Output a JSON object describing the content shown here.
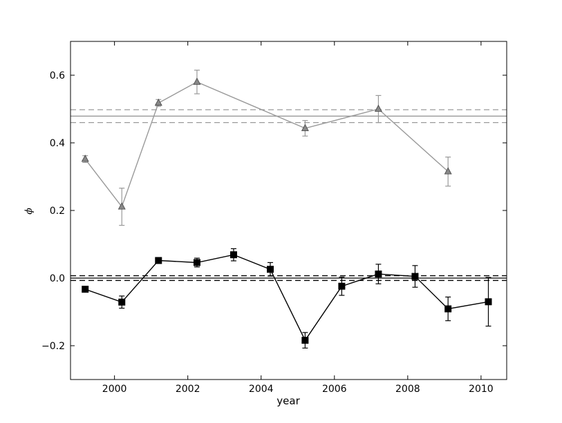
{
  "chart_data": {
    "type": "line",
    "xlabel": "year",
    "ylabel": "ϕ",
    "xlim": [
      1998.8,
      2010.7
    ],
    "ylim": [
      -0.3,
      0.7
    ],
    "x_ticks": [
      2000,
      2002,
      2004,
      2006,
      2008,
      2010
    ],
    "y_ticks": [
      -0.2,
      0.0,
      0.2,
      0.4,
      0.6
    ],
    "y_tick_labels": [
      "−0.2",
      "0.0",
      "0.2",
      "0.4",
      "0.6"
    ],
    "grid": false,
    "series": [
      {
        "color": "#999999",
        "marker": "triangle",
        "points": [
          {
            "x": 1999.2,
            "y": 0.352,
            "err": 0.01
          },
          {
            "x": 2000.2,
            "y": 0.211,
            "err": 0.055
          },
          {
            "x": 2001.2,
            "y": 0.518,
            "err": 0.01
          },
          {
            "x": 2002.25,
            "y": 0.58,
            "err": 0.035
          },
          {
            "x": 2005.2,
            "y": 0.443,
            "err": 0.023
          },
          {
            "x": 2007.2,
            "y": 0.5,
            "err": 0.04
          },
          {
            "x": 2009.1,
            "y": 0.315,
            "err": 0.043
          }
        ],
        "mean": 0.479,
        "band": [
          0.46,
          0.498
        ]
      },
      {
        "color": "#000000",
        "marker": "square",
        "points": [
          {
            "x": 1999.2,
            "y": -0.033,
            "err": 0.0
          },
          {
            "x": 2000.2,
            "y": -0.071,
            "err": 0.018
          },
          {
            "x": 2001.2,
            "y": 0.052,
            "err": 0.0
          },
          {
            "x": 2002.25,
            "y": 0.046,
            "err": 0.013
          },
          {
            "x": 2003.25,
            "y": 0.069,
            "err": 0.018
          },
          {
            "x": 2004.25,
            "y": 0.026,
            "err": 0.02
          },
          {
            "x": 2005.2,
            "y": -0.184,
            "err": 0.023
          },
          {
            "x": 2006.2,
            "y": -0.024,
            "err": 0.027
          },
          {
            "x": 2007.2,
            "y": 0.012,
            "err": 0.029
          },
          {
            "x": 2008.2,
            "y": 0.005,
            "err": 0.032
          },
          {
            "x": 2009.1,
            "y": -0.091,
            "err": 0.035
          },
          {
            "x": 2010.2,
            "y": -0.07,
            "err": 0.072
          }
        ],
        "mean": 0.0,
        "band": [
          -0.007,
          0.007
        ]
      }
    ]
  }
}
